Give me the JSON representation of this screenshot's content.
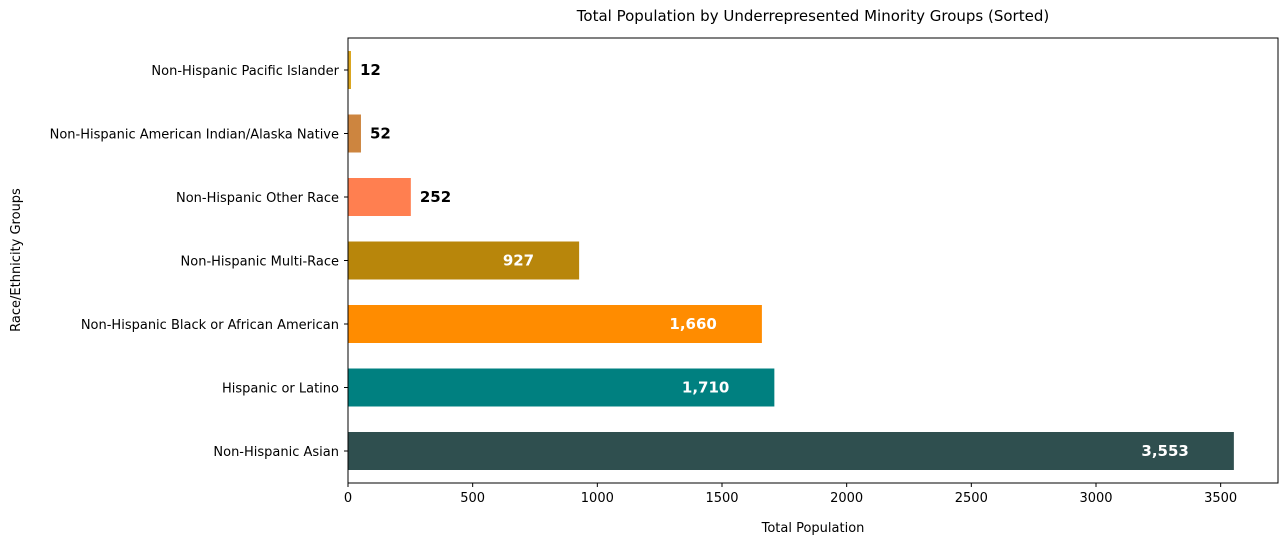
{
  "chart_data": {
    "type": "bar",
    "orientation": "horizontal",
    "title": "Total Population by Underrepresented Minority Groups (Sorted)",
    "xlabel": "Total Population",
    "ylabel": "Race/Ethnicity Groups",
    "xlim": [
      0,
      3730
    ],
    "xticks": [
      0,
      500,
      1000,
      1500,
      2000,
      2500,
      3000,
      3500
    ],
    "xtick_labels": [
      "0",
      "500",
      "1000",
      "1500",
      "2000",
      "2500",
      "3000",
      "3500"
    ],
    "grid": false,
    "categories": [
      "Non-Hispanic Asian",
      "Hispanic or Latino",
      "Non-Hispanic Black or African American",
      "Non-Hispanic Multi-Race",
      "Non-Hispanic Other Race",
      "Non-Hispanic American Indian/Alaska Native",
      "Non-Hispanic Pacific Islander"
    ],
    "values": [
      3553,
      1710,
      1660,
      927,
      252,
      52,
      12
    ],
    "data_labels": [
      "3,553",
      "1,710",
      "1,660",
      "927",
      "252",
      "52",
      "12"
    ],
    "label_inside": [
      true,
      true,
      true,
      true,
      false,
      false,
      false
    ],
    "colors": [
      "#2f4f4f",
      "#008080",
      "#ff8c00",
      "#b8860b",
      "#ff7f50",
      "#cd853f",
      "#daa520"
    ]
  }
}
